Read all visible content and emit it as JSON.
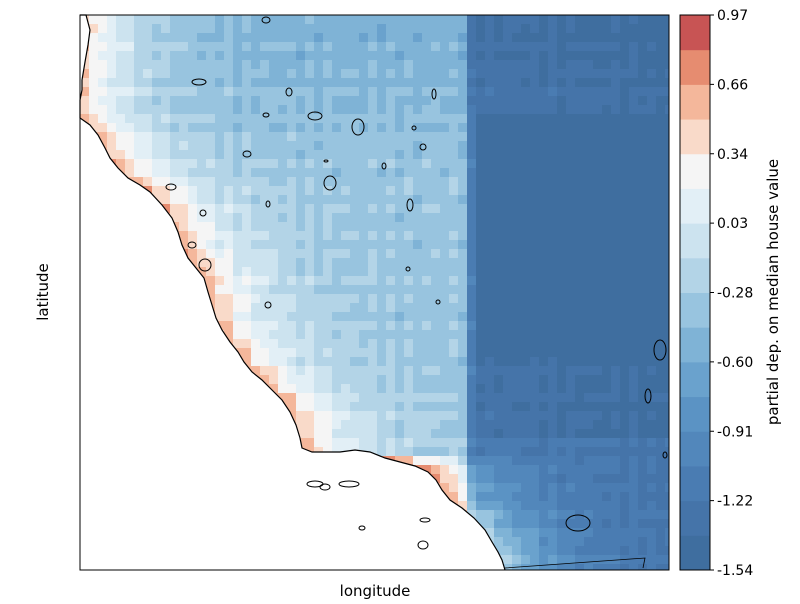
{
  "chart_data": {
    "type": "heatmap",
    "title": "",
    "xlabel": "longitude",
    "ylabel": "latitude",
    "colorbar": {
      "label": "partial dep. on median house value",
      "ticks": [
        "0.97",
        "0.66",
        "0.34",
        "0.03",
        "-0.28",
        "-0.60",
        "-0.91",
        "-1.22",
        "-1.54"
      ],
      "vmin": -1.54,
      "vmax": 0.97,
      "colormap": "RdBu_r",
      "levels": 16
    },
    "grid": false,
    "legend": "right",
    "background_mask": "land only; ocean left white"
  }
}
